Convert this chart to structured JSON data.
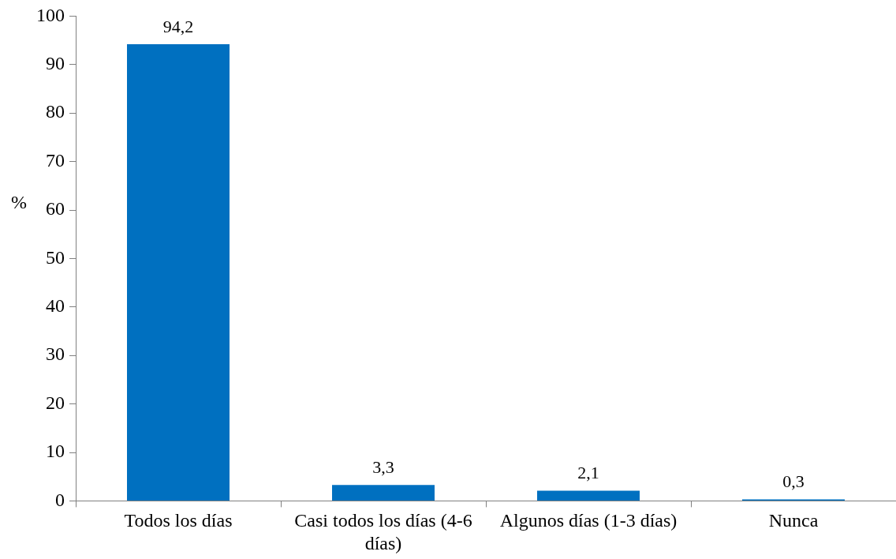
{
  "chart_data": {
    "type": "bar",
    "ylabel": "%",
    "categories": [
      "Todos los días",
      "Casi todos los días (4-6 días)",
      "Algunos días (1-3 días)",
      "Nunca"
    ],
    "values": [
      94.2,
      3.3,
      2.1,
      0.3
    ],
    "value_labels": [
      "94,2",
      "3,3",
      "2,1",
      "0,3"
    ],
    "color": "#0070c0",
    "ylim": [
      0,
      100
    ],
    "yticks": [
      0,
      10,
      20,
      30,
      40,
      50,
      60,
      70,
      80,
      90,
      100
    ],
    "grid": false,
    "legend": false
  }
}
